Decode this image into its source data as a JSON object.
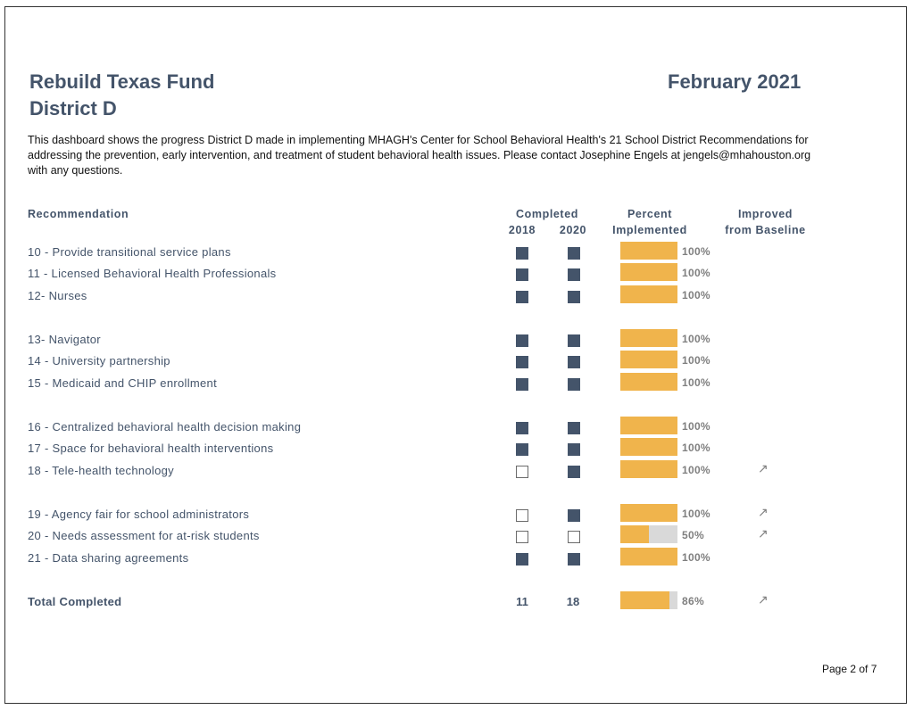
{
  "header": {
    "org": "Rebuild Texas Fund",
    "district": "District D",
    "date": "February 2021"
  },
  "intro": "This dashboard shows the progress District D made in implementing  MHAGH's Center for School Behavioral Health's 21 School District Recommendations for addressing the prevention, early intervention, and treatment of student behavioral health issues.  Please contact Josephine Engels at jengels@mhahouston.org with any questions.",
  "table": {
    "headers": {
      "recommendation": "Recommendation",
      "completed": "Completed",
      "year1": "2018",
      "year2": "2020",
      "percent_line1": "Percent",
      "percent_line2": "Implemented",
      "improved_line1": "Improved",
      "improved_line2": "from Baseline"
    },
    "rows": [
      {
        "label": "10 - Provide transitional service plans",
        "c2018": true,
        "c2020": true,
        "percent": 100,
        "percent_label": "100%",
        "improved": false
      },
      {
        "label": "11 - Licensed Behavioral Health Professionals",
        "c2018": true,
        "c2020": true,
        "percent": 100,
        "percent_label": "100%",
        "improved": false
      },
      {
        "label": "12- Nurses",
        "c2018": true,
        "c2020": true,
        "percent": 100,
        "percent_label": "100%",
        "improved": false
      },
      {
        "label": "13- Navigator",
        "c2018": true,
        "c2020": true,
        "percent": 100,
        "percent_label": "100%",
        "improved": false
      },
      {
        "label": "14 - University partnership",
        "c2018": true,
        "c2020": true,
        "percent": 100,
        "percent_label": "100%",
        "improved": false
      },
      {
        "label": "15 - Medicaid and CHIP enrollment",
        "c2018": true,
        "c2020": true,
        "percent": 100,
        "percent_label": "100%",
        "improved": false
      },
      {
        "label": "16 - Centralized behavioral health decision making",
        "c2018": true,
        "c2020": true,
        "percent": 100,
        "percent_label": "100%",
        "improved": false
      },
      {
        "label": "17 - Space for behavioral health interventions",
        "c2018": true,
        "c2020": true,
        "percent": 100,
        "percent_label": "100%",
        "improved": false
      },
      {
        "label": "18 - Tele-health technology",
        "c2018": false,
        "c2020": true,
        "percent": 100,
        "percent_label": "100%",
        "improved": true
      },
      {
        "label": "19 - Agency fair for school administrators",
        "c2018": false,
        "c2020": true,
        "percent": 100,
        "percent_label": "100%",
        "improved": true
      },
      {
        "label": "20 - Needs assessment for at-risk students",
        "c2018": false,
        "c2020": false,
        "percent": 50,
        "percent_label": "50%",
        "improved": true
      },
      {
        "label": "21 - Data sharing agreements",
        "c2018": true,
        "c2020": true,
        "percent": 100,
        "percent_label": "100%",
        "improved": false
      }
    ],
    "total": {
      "label": "Total Completed",
      "c2018": "11",
      "c2020": "18",
      "percent": 86,
      "percent_label": "86%",
      "improved": true
    }
  },
  "improved_glyph": "↗",
  "footer": "Page 2 of  7",
  "colors": {
    "heading": "#44546a",
    "bar_fill": "#f0b44c",
    "bar_track": "#d9d9d9",
    "box_filled": "#44546a"
  }
}
